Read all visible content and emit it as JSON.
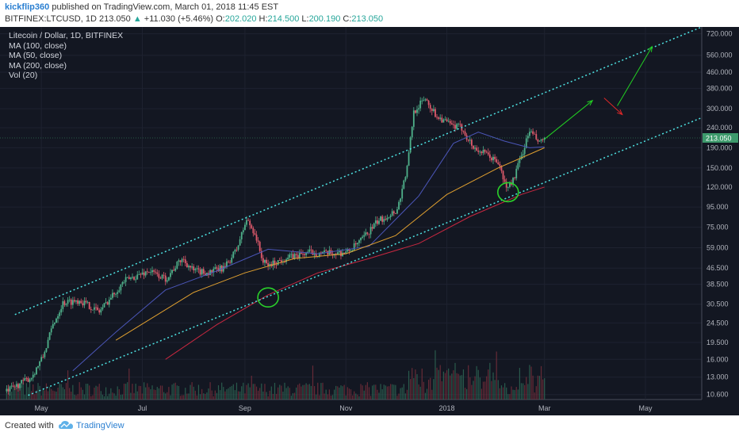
{
  "header": {
    "author": "kickflip360",
    "published": "published on TradingView.com, March 01, 2018 11:45 EST",
    "symbol": "BITFINEX:LTCUSD, 1D",
    "price": "213.050",
    "change_arrow": "▲",
    "change": "+11.030 (+5.46%)",
    "o_label": "O:",
    "o_value": "202.020",
    "h_label": "H:",
    "h_value": "214.500",
    "l_label": "L:",
    "l_value": "200.190",
    "c_label": "C:",
    "c_value": "213.050"
  },
  "legend": {
    "title": "Litecoin / Dollar, 1D, BITFINEX",
    "ma100": "MA (100, close)",
    "ma50": "MA (50, close)",
    "ma200": "MA (200, close)",
    "vol": "Vol (20)"
  },
  "footer": {
    "created": "Created with",
    "brand": "TradingView"
  },
  "colors": {
    "background": "#131722",
    "grid": "#1e2230",
    "up": "#4fb08a",
    "down": "#e05a6c",
    "channel": "#4ee4e4",
    "ma_blue": "#4b56b8",
    "ma_orange": "#e0a030",
    "ma_red": "#c82840",
    "circle": "#2ad02a",
    "arrow_up": "#22d022",
    "arrow_down": "#e02828",
    "price_label": "#3d9a6c"
  },
  "chart_data": {
    "type": "candlestick",
    "scale": "log",
    "ylim": [
      10,
      780
    ],
    "xlim": [
      "2017-04-06",
      "2018-06-04"
    ],
    "last_price": "213.050",
    "y_ticks": [
      "720.000",
      "560.000",
      "460.000",
      "380.000",
      "300.000",
      "240.000",
      "190.000",
      "150.000",
      "120.000",
      "95.000",
      "75.000",
      "59.000",
      "46.500",
      "38.500",
      "30.500",
      "24.500",
      "19.500",
      "16.000",
      "13.000",
      "10.600"
    ],
    "x_ticks": [
      {
        "label": "May",
        "date": "2017-05-01"
      },
      {
        "label": "Jul",
        "date": "2017-07-01"
      },
      {
        "label": "Sep",
        "date": "2017-09-01"
      },
      {
        "label": "Nov",
        "date": "2017-11-01"
      },
      {
        "label": "2018",
        "date": "2018-01-01"
      },
      {
        "label": "Mar",
        "date": "2018-03-01"
      },
      {
        "label": "May",
        "date": "2018-05-01"
      }
    ],
    "price_anchors": [
      [
        "2017-04-10",
        11.0
      ],
      [
        "2017-04-25",
        13.0
      ],
      [
        "2017-05-02",
        16.5
      ],
      [
        "2017-05-08",
        24.0
      ],
      [
        "2017-05-14",
        31.0
      ],
      [
        "2017-05-24",
        32.0
      ],
      [
        "2017-06-05",
        28.0
      ],
      [
        "2017-06-20",
        40.0
      ],
      [
        "2017-07-05",
        45.0
      ],
      [
        "2017-07-15",
        41.0
      ],
      [
        "2017-07-25",
        52.0
      ],
      [
        "2017-08-01",
        45.0
      ],
      [
        "2017-08-10",
        44.0
      ],
      [
        "2017-08-20",
        47.0
      ],
      [
        "2017-08-27",
        58.0
      ],
      [
        "2017-09-02",
        82.0
      ],
      [
        "2017-09-07",
        70.0
      ],
      [
        "2017-09-12",
        50.0
      ],
      [
        "2017-09-15",
        48.0
      ],
      [
        "2017-09-25",
        52.0
      ],
      [
        "2017-10-10",
        56.0
      ],
      [
        "2017-10-20",
        55.0
      ],
      [
        "2017-11-02",
        56.0
      ],
      [
        "2017-11-10",
        64.0
      ],
      [
        "2017-11-20",
        80.0
      ],
      [
        "2017-12-02",
        92.0
      ],
      [
        "2017-12-08",
        150.0
      ],
      [
        "2017-12-12",
        290.0
      ],
      [
        "2017-12-19",
        340.0
      ],
      [
        "2017-12-25",
        280.0
      ],
      [
        "2018-01-04",
        245.0
      ],
      [
        "2018-01-10",
        240.0
      ],
      [
        "2018-01-17",
        190.0
      ],
      [
        "2018-01-25",
        175.0
      ],
      [
        "2018-02-01",
        160.0
      ],
      [
        "2018-02-06",
        118.0
      ],
      [
        "2018-02-10",
        130.0
      ],
      [
        "2018-02-15",
        172.0
      ],
      [
        "2018-02-20",
        232.0
      ],
      [
        "2018-02-26",
        200.0
      ],
      [
        "2018-03-01",
        213.0
      ]
    ],
    "ma_100": [
      [
        "2017-06-15",
        20
      ],
      [
        "2017-08-01",
        35
      ],
      [
        "2017-09-01",
        44
      ],
      [
        "2017-10-01",
        52
      ],
      [
        "2017-11-01",
        55
      ],
      [
        "2017-12-01",
        68
      ],
      [
        "2018-01-01",
        110
      ],
      [
        "2018-02-01",
        150
      ],
      [
        "2018-03-01",
        190
      ]
    ],
    "ma_50": [
      [
        "2017-05-20",
        14
      ],
      [
        "2017-06-15",
        22
      ],
      [
        "2017-07-15",
        36
      ],
      [
        "2017-08-15",
        45
      ],
      [
        "2017-09-15",
        58
      ],
      [
        "2017-10-15",
        55
      ],
      [
        "2017-11-15",
        60
      ],
      [
        "2017-12-15",
        108
      ],
      [
        "2018-01-05",
        200
      ],
      [
        "2018-01-20",
        228
      ],
      [
        "2018-02-05",
        205
      ],
      [
        "2018-02-20",
        190
      ],
      [
        "2018-03-01",
        192
      ]
    ],
    "ma_200": [
      [
        "2017-07-15",
        16
      ],
      [
        "2017-08-15",
        24
      ],
      [
        "2017-09-15",
        34
      ],
      [
        "2017-10-15",
        44
      ],
      [
        "2017-11-15",
        52
      ],
      [
        "2017-12-15",
        62
      ],
      [
        "2018-01-15",
        85
      ],
      [
        "2018-02-15",
        110
      ],
      [
        "2018-03-01",
        120
      ]
    ],
    "channel_upper": [
      [
        "2017-04-15",
        27
      ],
      [
        "2018-06-04",
        780
      ]
    ],
    "channel_lower": [
      [
        "2017-04-23",
        10.5
      ],
      [
        "2018-06-04",
        270
      ]
    ],
    "support_touches": [
      {
        "date": "2017-09-15",
        "price": 33
      },
      {
        "date": "2018-02-07",
        "price": 113
      }
    ],
    "projection_up_1": [
      [
        "2018-03-01",
        210
      ],
      [
        "2018-03-30",
        330
      ]
    ],
    "projection_down": [
      [
        "2018-04-06",
        340
      ],
      [
        "2018-04-17",
        280
      ]
    ],
    "projection_up_2": [
      [
        "2018-04-14",
        310
      ],
      [
        "2018-05-05",
        620
      ]
    ]
  }
}
